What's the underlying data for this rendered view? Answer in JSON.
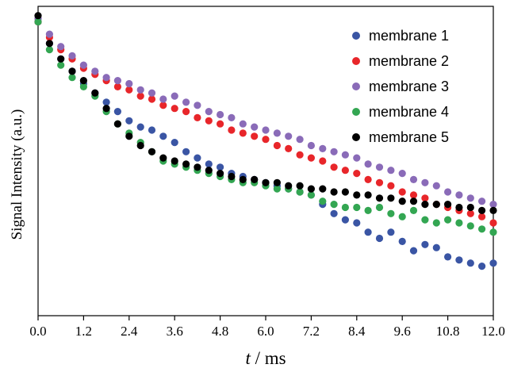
{
  "chart_data": {
    "type": "scatter",
    "title": "",
    "xlabel": "t / ms",
    "xlabel_var": "t",
    "xlabel_rest": " / ms",
    "ylabel": "Signal  Intensity (a.u.)",
    "xlim": [
      0,
      12
    ],
    "ylim": [
      0,
      1
    ],
    "xticks": [
      "0.0",
      "1.2",
      "2.4",
      "3.6",
      "4.8",
      "6.0",
      "7.2",
      "8.4",
      "9.6",
      "10.8",
      "12.0"
    ],
    "legend_position": "top-right",
    "grid": false,
    "series": [
      {
        "name": "membrane 1",
        "color": "#3a55a4",
        "x": [
          0.0,
          0.3,
          0.6,
          0.9,
          1.2,
          1.5,
          1.8,
          2.1,
          2.4,
          2.7,
          3.0,
          3.3,
          3.6,
          3.9,
          4.2,
          4.5,
          4.8,
          5.1,
          5.4,
          5.7,
          6.0,
          6.3,
          6.6,
          6.9,
          7.2,
          7.5,
          7.8,
          8.1,
          8.4,
          8.7,
          9.0,
          9.3,
          9.6,
          9.9,
          10.2,
          10.5,
          10.8,
          11.1,
          11.4,
          11.7,
          12.0
        ],
        "y": [
          0.95,
          0.88,
          0.83,
          0.79,
          0.75,
          0.72,
          0.69,
          0.66,
          0.63,
          0.61,
          0.6,
          0.58,
          0.56,
          0.53,
          0.51,
          0.49,
          0.48,
          0.46,
          0.45,
          0.44,
          0.43,
          0.42,
          0.41,
          0.4,
          0.39,
          0.36,
          0.33,
          0.31,
          0.3,
          0.27,
          0.25,
          0.27,
          0.24,
          0.21,
          0.23,
          0.22,
          0.19,
          0.18,
          0.17,
          0.16,
          0.17
        ]
      },
      {
        "name": "membrane 2",
        "color": "#e8262a",
        "x": [
          0.0,
          0.3,
          0.6,
          0.9,
          1.2,
          1.5,
          1.8,
          2.1,
          2.4,
          2.7,
          3.0,
          3.3,
          3.6,
          3.9,
          4.2,
          4.5,
          4.8,
          5.1,
          5.4,
          5.7,
          6.0,
          6.3,
          6.6,
          6.9,
          7.2,
          7.5,
          7.8,
          8.1,
          8.4,
          8.7,
          9.0,
          9.3,
          9.6,
          9.9,
          10.2,
          10.5,
          10.8,
          11.1,
          11.4,
          11.7,
          12.0
        ],
        "y": [
          0.95,
          0.9,
          0.86,
          0.83,
          0.8,
          0.78,
          0.76,
          0.74,
          0.73,
          0.71,
          0.7,
          0.68,
          0.67,
          0.66,
          0.64,
          0.63,
          0.62,
          0.6,
          0.59,
          0.58,
          0.57,
          0.55,
          0.54,
          0.52,
          0.51,
          0.5,
          0.48,
          0.47,
          0.46,
          0.44,
          0.43,
          0.42,
          0.4,
          0.39,
          0.38,
          0.36,
          0.35,
          0.34,
          0.33,
          0.32,
          0.3
        ]
      },
      {
        "name": "membrane 3",
        "color": "#8a6bb8",
        "x": [
          0.0,
          0.3,
          0.6,
          0.9,
          1.2,
          1.5,
          1.8,
          2.1,
          2.4,
          2.7,
          3.0,
          3.3,
          3.6,
          3.9,
          4.2,
          4.5,
          4.8,
          5.1,
          5.4,
          5.7,
          6.0,
          6.3,
          6.6,
          6.9,
          7.2,
          7.5,
          7.8,
          8.1,
          8.4,
          8.7,
          9.0,
          9.3,
          9.6,
          9.9,
          10.2,
          10.5,
          10.8,
          11.1,
          11.4,
          11.7,
          12.0
        ],
        "y": [
          0.96,
          0.91,
          0.87,
          0.84,
          0.81,
          0.79,
          0.77,
          0.76,
          0.75,
          0.73,
          0.72,
          0.7,
          0.71,
          0.69,
          0.68,
          0.66,
          0.65,
          0.64,
          0.62,
          0.61,
          0.6,
          0.59,
          0.58,
          0.57,
          0.55,
          0.54,
          0.53,
          0.52,
          0.51,
          0.49,
          0.48,
          0.47,
          0.46,
          0.44,
          0.43,
          0.42,
          0.4,
          0.39,
          0.38,
          0.37,
          0.36
        ]
      },
      {
        "name": "membrane 4",
        "color": "#33a652",
        "x": [
          0.0,
          0.3,
          0.6,
          0.9,
          1.2,
          1.5,
          1.8,
          2.1,
          2.4,
          2.7,
          3.0,
          3.3,
          3.6,
          3.9,
          4.2,
          4.5,
          4.8,
          5.1,
          5.4,
          5.7,
          6.0,
          6.3,
          6.6,
          6.9,
          7.2,
          7.5,
          7.8,
          8.1,
          8.4,
          8.7,
          9.0,
          9.3,
          9.6,
          9.9,
          10.2,
          10.5,
          10.8,
          11.1,
          11.4,
          11.7,
          12.0
        ],
        "y": [
          0.95,
          0.86,
          0.81,
          0.77,
          0.74,
          0.71,
          0.66,
          0.62,
          0.59,
          0.56,
          0.53,
          0.5,
          0.49,
          0.48,
          0.47,
          0.46,
          0.45,
          0.44,
          0.43,
          0.43,
          0.42,
          0.41,
          0.41,
          0.4,
          0.39,
          0.37,
          0.36,
          0.35,
          0.35,
          0.34,
          0.35,
          0.33,
          0.32,
          0.34,
          0.31,
          0.3,
          0.31,
          0.3,
          0.29,
          0.28,
          0.27
        ]
      },
      {
        "name": "membrane 5",
        "color": "#000000",
        "x": [
          0.0,
          0.3,
          0.6,
          0.9,
          1.2,
          1.5,
          1.8,
          2.1,
          2.4,
          2.7,
          3.0,
          3.3,
          3.6,
          3.9,
          4.2,
          4.5,
          4.8,
          5.1,
          5.4,
          5.7,
          6.0,
          6.3,
          6.6,
          6.9,
          7.2,
          7.5,
          7.8,
          8.1,
          8.4,
          8.7,
          9.0,
          9.3,
          9.6,
          9.9,
          10.2,
          10.5,
          10.8,
          11.1,
          11.4,
          11.7,
          12.0
        ],
        "y": [
          0.97,
          0.88,
          0.83,
          0.79,
          0.76,
          0.72,
          0.67,
          0.62,
          0.58,
          0.55,
          0.53,
          0.51,
          0.5,
          0.49,
          0.48,
          0.47,
          0.46,
          0.45,
          0.44,
          0.44,
          0.43,
          0.43,
          0.42,
          0.42,
          0.41,
          0.41,
          0.4,
          0.4,
          0.39,
          0.39,
          0.38,
          0.38,
          0.37,
          0.37,
          0.36,
          0.36,
          0.36,
          0.35,
          0.35,
          0.34,
          0.34
        ]
      }
    ]
  }
}
